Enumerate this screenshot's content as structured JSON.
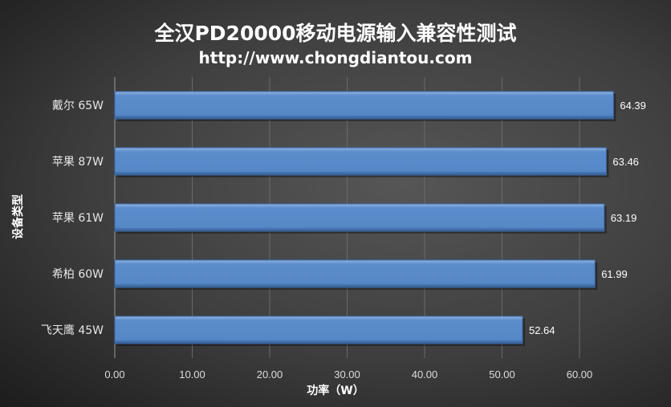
{
  "chart_data": {
    "type": "bar",
    "orientation": "horizontal",
    "title": "全汉PD20000移动电源输入兼容性测试",
    "subtitle": "http://www.chongdiantou.com",
    "xlabel": "功率（W）",
    "ylabel": "设备类型",
    "categories": [
      "戴尔 65W",
      "苹果 87W",
      "苹果 61W",
      "希柏 60W",
      "飞天鹰 45W"
    ],
    "values": [
      64.39,
      63.46,
      63.19,
      61.99,
      52.64
    ],
    "value_labels": [
      "64.39",
      "63.46",
      "63.19",
      "61.99",
      "52.64"
    ],
    "xlim": [
      0,
      70
    ],
    "xticks": [
      "0.00",
      "10.00",
      "20.00",
      "30.00",
      "40.00",
      "50.00",
      "60.00"
    ],
    "grid": true,
    "bar_color": "#5b8ccb"
  }
}
